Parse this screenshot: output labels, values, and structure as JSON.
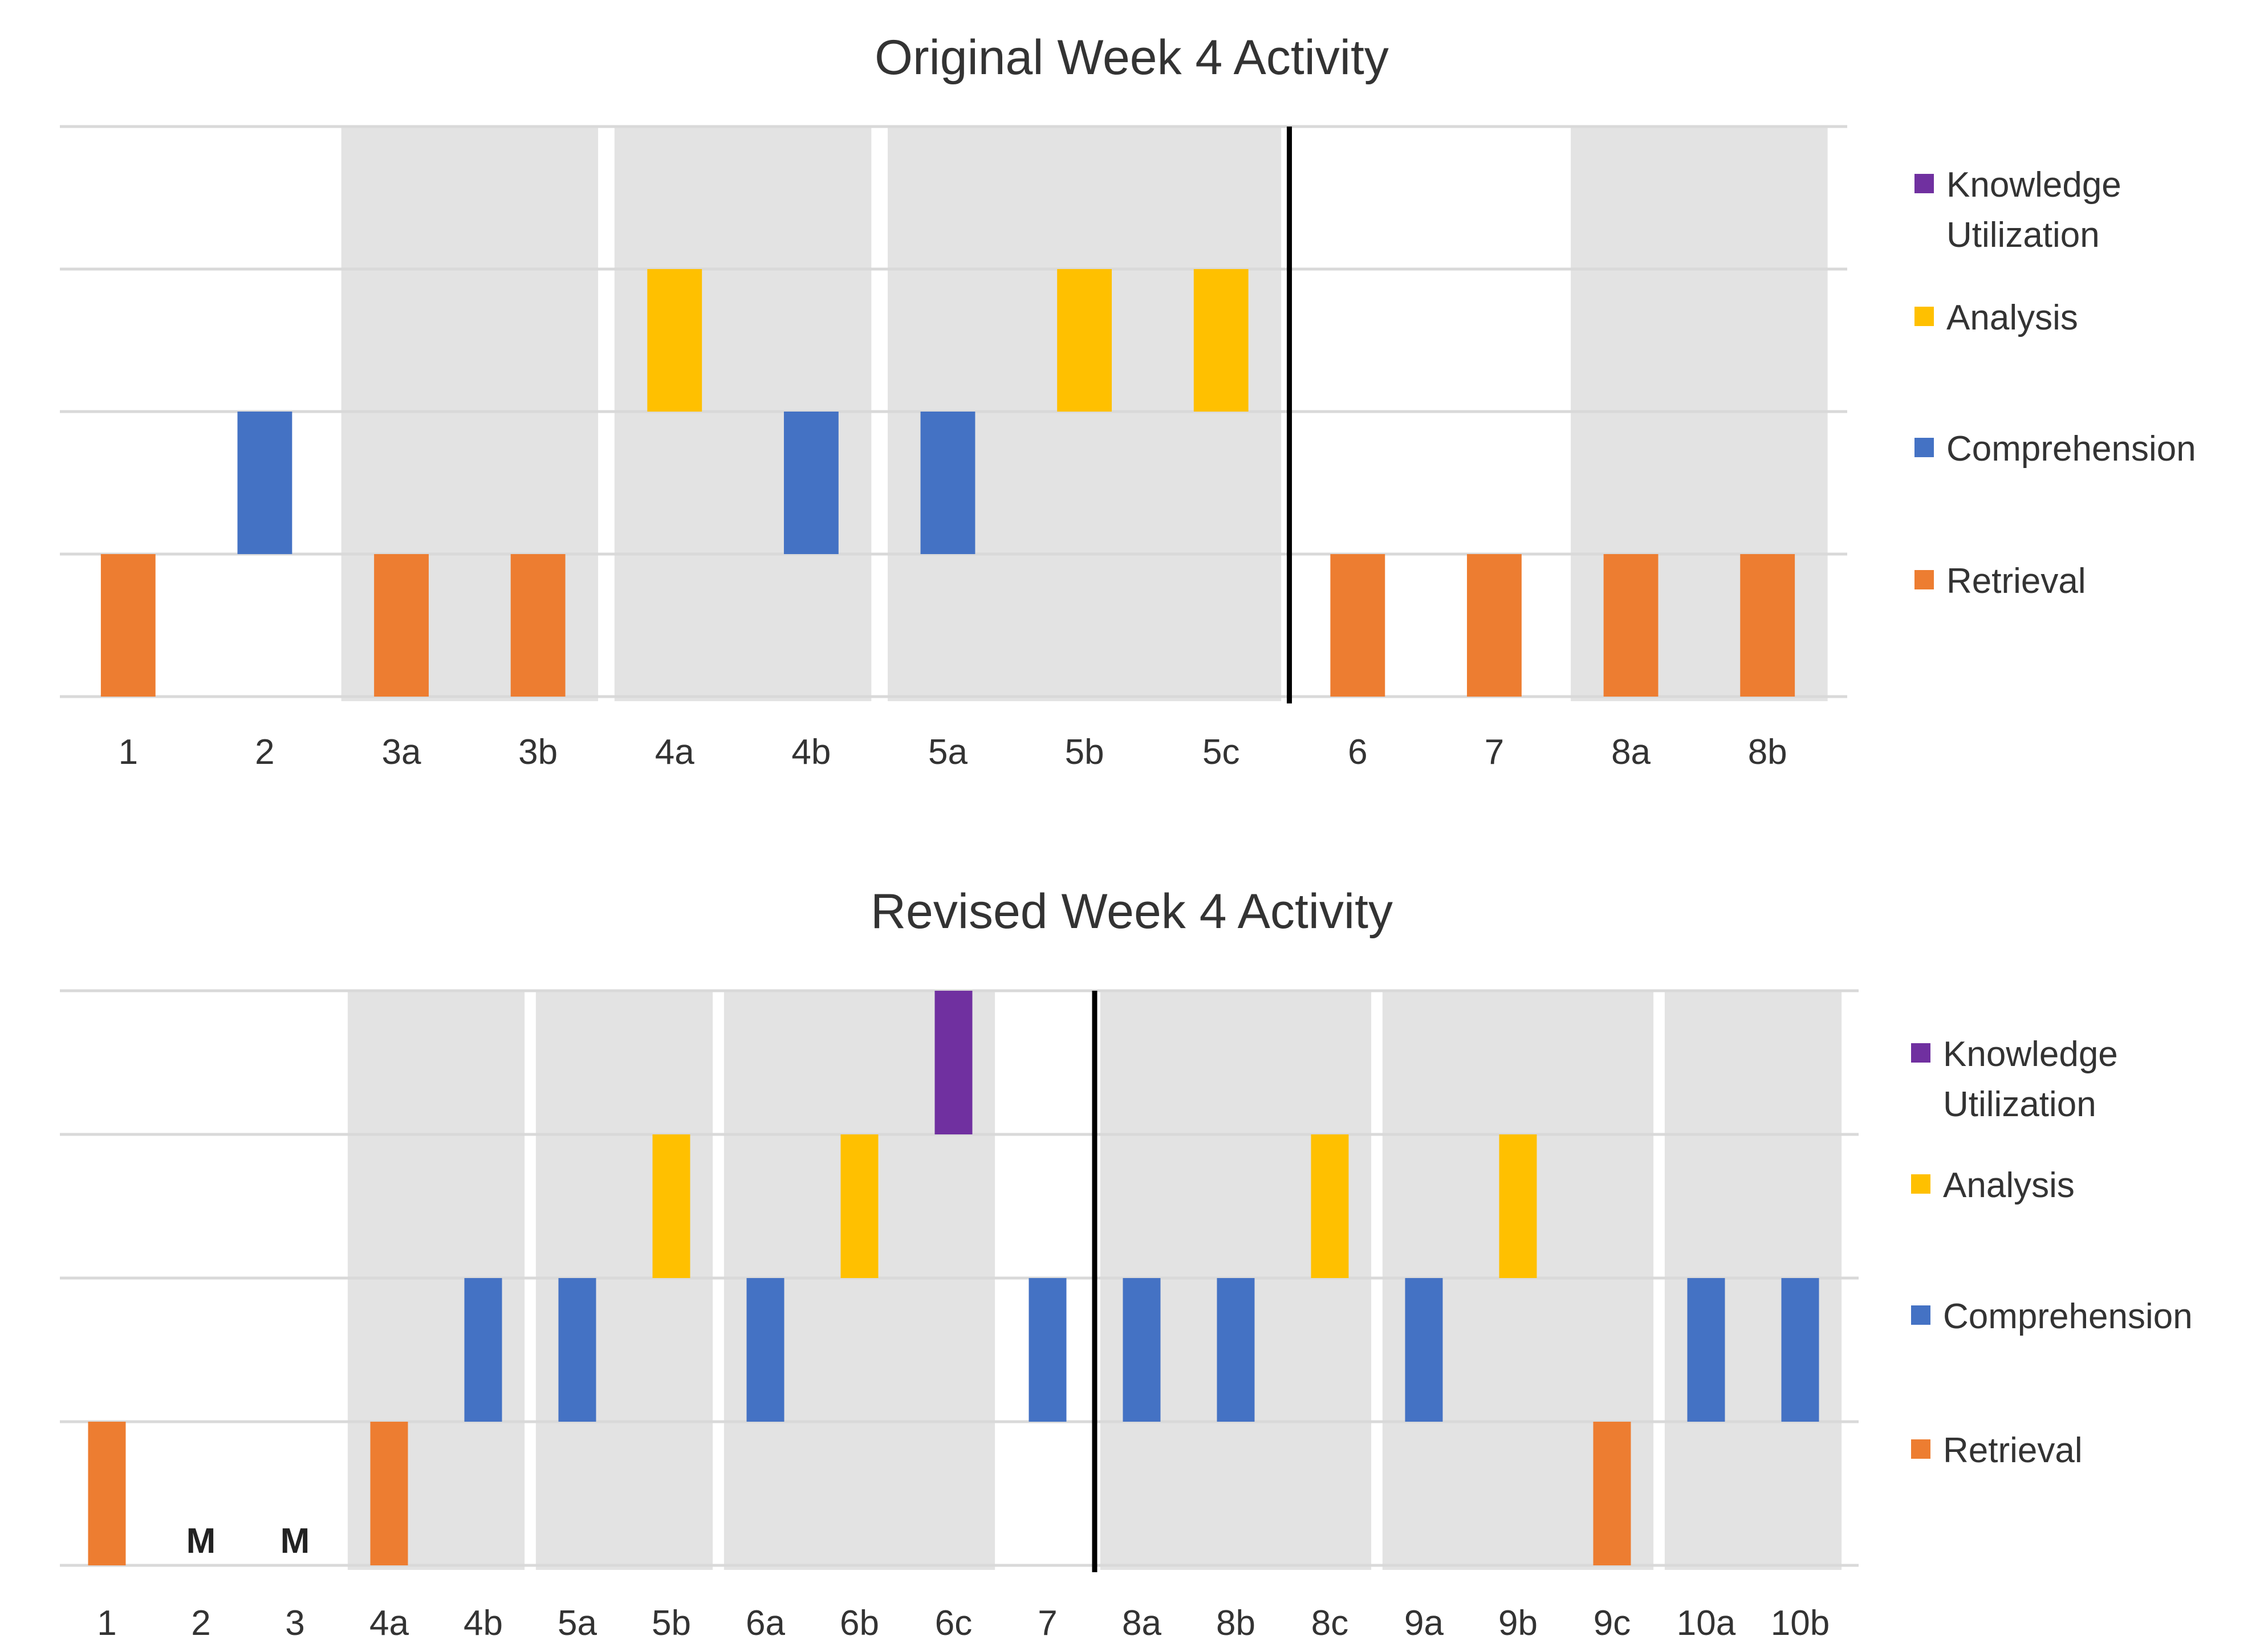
{
  "levels": [
    "Retrieval",
    "Comprehension",
    "Analysis",
    "Knowledge Utilization"
  ],
  "colors": {
    "Retrieval": "#ED7D31",
    "Comprehension": "#4472C4",
    "Analysis": "#FFC000",
    "Knowledge Utilization": "#7030A0",
    "shade": "#E3E3E3",
    "grid": "#D9D9D9",
    "divider": "#000000",
    "text": "#333333"
  },
  "chart_data": [
    {
      "type": "bar",
      "title": "Original Week 4 Activity",
      "xlabel": "",
      "ylabel": "",
      "ylim": [
        0,
        4
      ],
      "categories": [
        "1",
        "2",
        "3a",
        "3b",
        "4a",
        "4b",
        "5a",
        "5b",
        "5c",
        "6",
        "7",
        "8a",
        "8b"
      ],
      "values": [
        1,
        2,
        1,
        1,
        3,
        2,
        2,
        3,
        3,
        1,
        1,
        1,
        1
      ],
      "value_labels": [
        "Retrieval",
        "Comprehension",
        "Retrieval",
        "Retrieval",
        "Analysis",
        "Comprehension",
        "Comprehension",
        "Analysis",
        "Analysis",
        "Retrieval",
        "Retrieval",
        "Retrieval",
        "Retrieval"
      ],
      "shaded_groups": [
        [
          "3a",
          "3b"
        ],
        [
          "4a",
          "4b"
        ],
        [
          "5a",
          "5b",
          "5c"
        ],
        [
          "8a",
          "8b"
        ]
      ],
      "divider_between": [
        "5c",
        "6"
      ],
      "markers": [],
      "legend": {
        "position": "right",
        "entries": [
          {
            "name": "Knowledge Utilization",
            "lines": [
              "Knowledge",
              "Utilization"
            ]
          },
          {
            "name": "Analysis",
            "lines": [
              "Analysis"
            ]
          },
          {
            "name": "Comprehension",
            "lines": [
              "Comprehension"
            ]
          },
          {
            "name": "Retrieval",
            "lines": [
              "Retrieval"
            ]
          }
        ]
      }
    },
    {
      "type": "bar",
      "title": "Revised Week 4 Activity",
      "xlabel": "",
      "ylabel": "",
      "ylim": [
        0,
        4
      ],
      "categories": [
        "1",
        "2",
        "3",
        "4a",
        "4b",
        "5a",
        "5b",
        "6a",
        "6b",
        "6c",
        "7",
        "8a",
        "8b",
        "8c",
        "9a",
        "9b",
        "9c",
        "10a",
        "10b"
      ],
      "values": [
        1,
        0,
        0,
        1,
        2,
        2,
        3,
        2,
        3,
        4,
        2,
        2,
        2,
        3,
        2,
        3,
        1,
        2,
        2
      ],
      "value_labels": [
        "Retrieval",
        "",
        "",
        "Retrieval",
        "Comprehension",
        "Comprehension",
        "Analysis",
        "Comprehension",
        "Analysis",
        "Knowledge Utilization",
        "Comprehension",
        "Comprehension",
        "Comprehension",
        "Analysis",
        "Comprehension",
        "Analysis",
        "Retrieval",
        "Comprehension",
        "Comprehension"
      ],
      "shaded_groups": [
        [
          "4a",
          "4b"
        ],
        [
          "5a",
          "5b"
        ],
        [
          "6a",
          "6b",
          "6c"
        ],
        [
          "8a",
          "8b",
          "8c"
        ],
        [
          "9a",
          "9b",
          "9c"
        ],
        [
          "10a",
          "10b"
        ]
      ],
      "divider_between": [
        "7",
        "8a"
      ],
      "markers": [
        {
          "category": "2",
          "text": "M"
        },
        {
          "category": "3",
          "text": "M"
        }
      ],
      "legend": {
        "position": "right",
        "entries": [
          {
            "name": "Knowledge Utilization",
            "lines": [
              "Knowledge",
              "Utilization"
            ]
          },
          {
            "name": "Analysis",
            "lines": [
              "Analysis"
            ]
          },
          {
            "name": "Comprehension",
            "lines": [
              "Comprehension"
            ]
          },
          {
            "name": "Retrieval",
            "lines": [
              "Retrieval"
            ]
          }
        ]
      }
    }
  ]
}
